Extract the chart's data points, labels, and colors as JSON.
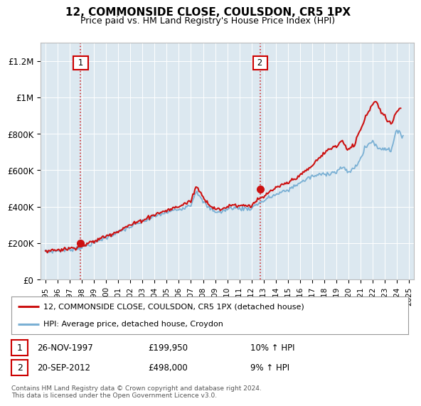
{
  "title": "12, COMMONSIDE CLOSE, COULSDON, CR5 1PX",
  "subtitle": "Price paid vs. HM Land Registry's House Price Index (HPI)",
  "legend_line1": "12, COMMONSIDE CLOSE, COULSDON, CR5 1PX (detached house)",
  "legend_line2": "HPI: Average price, detached house, Croydon",
  "footer": "Contains HM Land Registry data © Crown copyright and database right 2024.\nThis data is licensed under the Open Government Licence v3.0.",
  "sale1_date": "26-NOV-1997",
  "sale1_price": "£199,950",
  "sale1_hpi": "10% ↑ HPI",
  "sale2_date": "20-SEP-2012",
  "sale2_price": "£498,000",
  "sale2_hpi": "9% ↑ HPI",
  "ylim": [
    0,
    1300000
  ],
  "yticks": [
    0,
    200000,
    400000,
    600000,
    800000,
    1000000,
    1200000
  ],
  "ytick_labels": [
    "£0",
    "£200K",
    "£400K",
    "£600K",
    "£800K",
    "£1M",
    "£1.2M"
  ],
  "sale1_x": 1997.9,
  "sale1_price_val": 199950,
  "sale2_x": 2012.72,
  "sale2_price_val": 498000,
  "hpi_color": "#7ab0d4",
  "price_color": "#cc1111",
  "dashed_color": "#cc1111",
  "background_color": "#ffffff",
  "plot_bg_color": "#dce8f0",
  "grid_color": "#ffffff",
  "title_fontsize": 11,
  "subtitle_fontsize": 9
}
